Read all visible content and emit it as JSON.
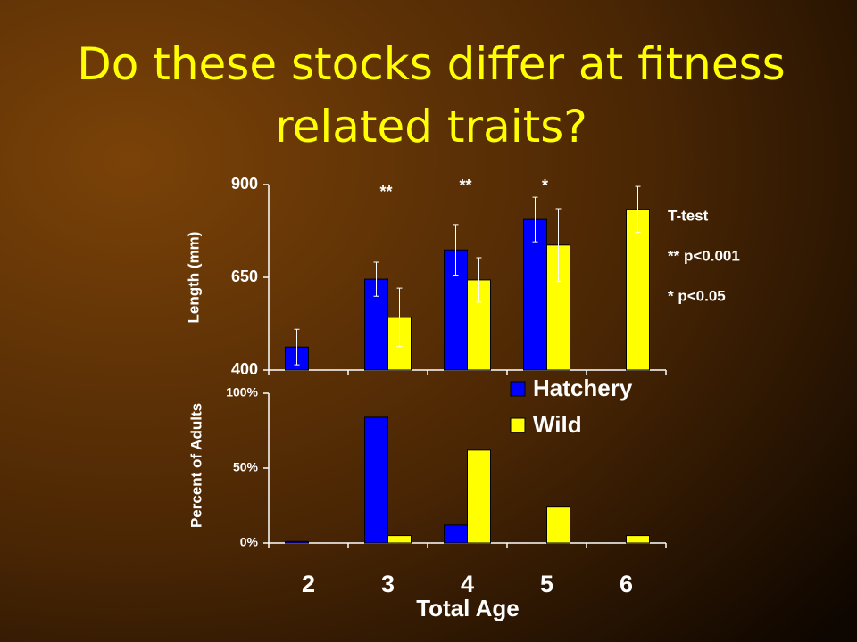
{
  "title": "Do these stocks differ at fitness related traits?",
  "chart_data": [
    {
      "type": "bar",
      "ylabel": "Length (mm)",
      "ylim": [
        400,
        900
      ],
      "yticks": [
        400,
        650,
        900
      ],
      "series": [
        {
          "name": "Hatchery",
          "color": "#0000ff",
          "values": [
            462,
            645,
            724,
            806,
            null
          ],
          "errors": [
            48,
            46,
            68,
            60,
            null
          ]
        },
        {
          "name": "Wild",
          "color": "#ffff00",
          "values": [
            null,
            542,
            643,
            737,
            833
          ],
          "errors": [
            null,
            79,
            60,
            98,
            62
          ]
        }
      ],
      "significance": [
        null,
        "**",
        "**",
        "*",
        null
      ],
      "notes": [
        "T-test",
        "** p<0.001",
        "* p<0.05"
      ]
    },
    {
      "type": "bar",
      "ylabel": "Percent of Adults",
      "xlabel": "Total Age",
      "categories": [
        "2",
        "3",
        "4",
        "5",
        "6"
      ],
      "ylim": [
        0,
        100
      ],
      "yticks": [
        {
          "value": 0,
          "label": "0%"
        },
        {
          "value": 50,
          "label": "50%"
        },
        {
          "value": 100,
          "label": "100%"
        }
      ],
      "series": [
        {
          "name": "Hatchery",
          "color": "#0000ff",
          "values": [
            1,
            84,
            12,
            0,
            0
          ]
        },
        {
          "name": "Wild",
          "color": "#ffff00",
          "values": [
            0,
            5,
            62,
            24,
            5
          ]
        }
      ],
      "legend": "upper right"
    }
  ]
}
